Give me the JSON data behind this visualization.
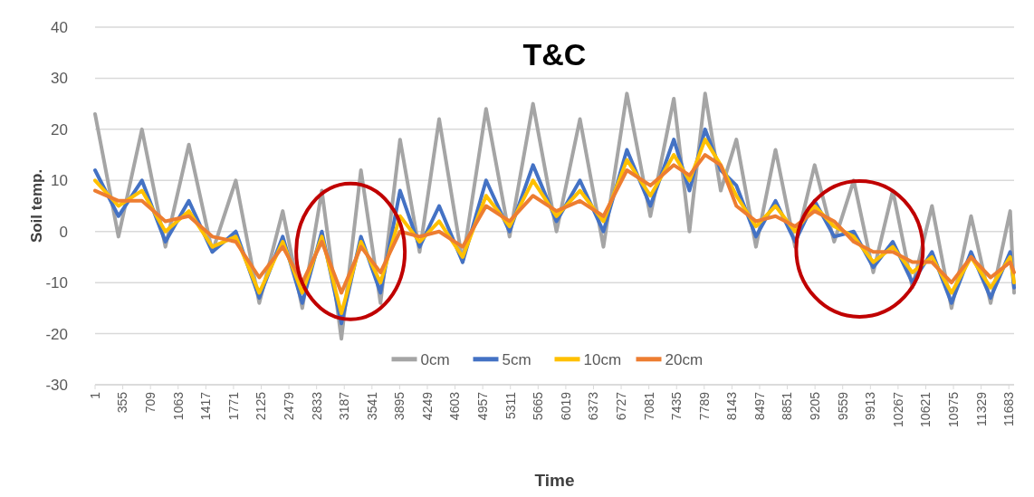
{
  "chart_data": {
    "type": "line",
    "title": "T&C",
    "xlabel": "Time",
    "ylabel": "Soil temp.",
    "x": [
      1,
      300,
      600,
      900,
      1200,
      1500,
      1800,
      2100,
      2400,
      2650,
      2900,
      3150,
      3400,
      3650,
      3900,
      4150,
      4400,
      4700,
      5000,
      5300,
      5600,
      5900,
      6200,
      6500,
      6800,
      7100,
      7400,
      7600,
      7800,
      8000,
      8200,
      8450,
      8700,
      8950,
      9200,
      9450,
      9700,
      9950,
      10200,
      10450,
      10700,
      10950,
      11200,
      11450,
      11700,
      11750
    ],
    "series": [
      {
        "name": "0cm",
        "color": "#a5a5a5",
        "values": [
          23,
          -1,
          20,
          -3,
          17,
          -4,
          10,
          -14,
          4,
          -15,
          8,
          -21,
          12,
          -14,
          18,
          -4,
          22,
          -6,
          24,
          -1,
          25,
          0,
          22,
          -3,
          27,
          3,
          26,
          0,
          27,
          8,
          18,
          -3,
          16,
          -3,
          13,
          -2,
          10,
          -8,
          8,
          -11,
          5,
          -15,
          3,
          -14,
          4,
          -12
        ]
      },
      {
        "name": "5cm",
        "color": "#4472c4",
        "values": [
          12,
          3,
          10,
          -2,
          6,
          -4,
          0,
          -13,
          -1,
          -14,
          0,
          -18,
          -1,
          -12,
          8,
          -3,
          5,
          -6,
          10,
          0,
          13,
          2,
          10,
          0,
          16,
          5,
          18,
          8,
          20,
          12,
          9,
          -1,
          6,
          -2,
          6,
          -1,
          0,
          -7,
          -2,
          -10,
          -4,
          -14,
          -4,
          -13,
          -4,
          -11
        ]
      },
      {
        "name": "10cm",
        "color": "#ffc000",
        "values": [
          10,
          5,
          8,
          0,
          4,
          -3,
          -1,
          -12,
          -2,
          -12,
          -1,
          -16,
          -2,
          -10,
          3,
          -2,
          2,
          -5,
          7,
          1,
          10,
          3,
          8,
          2,
          14,
          7,
          15,
          10,
          18,
          13,
          7,
          1,
          5,
          0,
          5,
          1,
          -1,
          -6,
          -3,
          -8,
          -5,
          -12,
          -5,
          -11,
          -5,
          -10
        ]
      },
      {
        "name": "20cm",
        "color": "#ed7d31",
        "values": [
          8,
          6,
          6,
          2,
          3,
          -1,
          -2,
          -9,
          -3,
          -10,
          -2,
          -12,
          -3,
          -8,
          0,
          -1,
          0,
          -3,
          5,
          2,
          7,
          4,
          6,
          3,
          12,
          9,
          13,
          11,
          15,
          13,
          5,
          2,
          3,
          1,
          4,
          2,
          -2,
          -4,
          -4,
          -6,
          -6,
          -10,
          -5,
          -9,
          -6,
          -8
        ]
      }
    ],
    "xlim": [
      1,
      11750
    ],
    "xticks": [
      1,
      355,
      709,
      1063,
      1417,
      1771,
      2125,
      2479,
      2833,
      3187,
      3541,
      3895,
      4249,
      4603,
      4957,
      5311,
      5665,
      6019,
      6373,
      6727,
      7081,
      7435,
      7789,
      8143,
      8497,
      8851,
      9205,
      9559,
      9913,
      10267,
      10621,
      10975,
      11329,
      11683
    ],
    "ylim": [
      -30,
      40
    ],
    "yticks": [
      -30,
      -20,
      -10,
      0,
      10,
      20,
      30,
      40
    ],
    "grid": "y",
    "legend": "bottom",
    "marker": "none",
    "line_style": "solid"
  }
}
